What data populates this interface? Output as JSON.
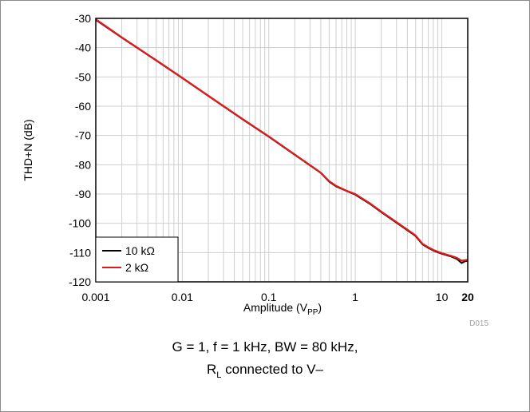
{
  "chart_data": {
    "type": "line",
    "xlabel": {
      "text": "Amplitude (V",
      "sub": "PP",
      "suffix": ")"
    },
    "ylabel": "THD+N (dB)",
    "x_scale": "log",
    "xlim": [
      0.001,
      20
    ],
    "ylim": [
      -120,
      -30
    ],
    "x_ticks": [
      {
        "value": 0.001,
        "label": "0.001",
        "bold": false
      },
      {
        "value": 0.01,
        "label": "0.01",
        "bold": false
      },
      {
        "value": 0.1,
        "label": "0.1",
        "bold": false
      },
      {
        "value": 1,
        "label": "1",
        "bold": false
      },
      {
        "value": 10,
        "label": "10",
        "bold": false
      },
      {
        "value": 20,
        "label": "20",
        "bold": true
      }
    ],
    "y_ticks": [
      {
        "value": -30,
        "label": "-30"
      },
      {
        "value": -40,
        "label": "-40"
      },
      {
        "value": -50,
        "label": "-50"
      },
      {
        "value": -60,
        "label": "-60"
      },
      {
        "value": -70,
        "label": "-70"
      },
      {
        "value": -80,
        "label": "-80"
      },
      {
        "value": -90,
        "label": "-90"
      },
      {
        "value": -100,
        "label": "-100"
      },
      {
        "value": -110,
        "label": "-110"
      },
      {
        "value": -120,
        "label": "-120"
      }
    ],
    "grid": true,
    "legend_position": "bottom-left",
    "series": [
      {
        "name": "10 kΩ",
        "color": "#000000",
        "points": [
          [
            0.001,
            -30.5
          ],
          [
            0.002,
            -36.6
          ],
          [
            0.005,
            -44.4
          ],
          [
            0.01,
            -50.4
          ],
          [
            0.02,
            -56.5
          ],
          [
            0.05,
            -64.5
          ],
          [
            0.1,
            -70.4
          ],
          [
            0.2,
            -76.6
          ],
          [
            0.4,
            -82.8
          ],
          [
            0.5,
            -85.8
          ],
          [
            0.6,
            -87.4
          ],
          [
            0.8,
            -89.0
          ],
          [
            1.0,
            -90.2
          ],
          [
            1.5,
            -93.5
          ],
          [
            2.0,
            -96.2
          ],
          [
            3.0,
            -99.8
          ],
          [
            4.5,
            -103.4
          ],
          [
            5.0,
            -104.4
          ],
          [
            6.0,
            -107.2
          ],
          [
            7.0,
            -108.4
          ],
          [
            8.0,
            -109.3
          ],
          [
            10.0,
            -110.4
          ],
          [
            13.0,
            -111.4
          ],
          [
            15.0,
            -112.2
          ],
          [
            17.0,
            -113.6
          ],
          [
            18.5,
            -113.0
          ],
          [
            20.0,
            -112.8
          ]
        ]
      },
      {
        "name": "2 kΩ",
        "color": "#e31a1c",
        "points": [
          [
            0.001,
            -30.3
          ],
          [
            0.002,
            -36.5
          ],
          [
            0.005,
            -44.3
          ],
          [
            0.01,
            -50.3
          ],
          [
            0.02,
            -56.4
          ],
          [
            0.05,
            -64.4
          ],
          [
            0.1,
            -70.3
          ],
          [
            0.2,
            -76.5
          ],
          [
            0.4,
            -82.7
          ],
          [
            0.5,
            -85.6
          ],
          [
            0.6,
            -87.2
          ],
          [
            0.8,
            -88.9
          ],
          [
            1.0,
            -90.0
          ],
          [
            1.5,
            -93.3
          ],
          [
            2.0,
            -96.0
          ],
          [
            3.0,
            -99.6
          ],
          [
            4.5,
            -103.2
          ],
          [
            5.0,
            -104.2
          ],
          [
            6.0,
            -107.0
          ],
          [
            7.0,
            -108.2
          ],
          [
            8.0,
            -109.1
          ],
          [
            10.0,
            -110.2
          ],
          [
            13.0,
            -111.2
          ],
          [
            15.0,
            -111.8
          ],
          [
            17.0,
            -112.8
          ],
          [
            18.5,
            -112.6
          ],
          [
            20.0,
            -112.5
          ]
        ]
      }
    ]
  },
  "figure_id": "D015",
  "caption": {
    "line1": "G = 1, f = 1 kHz, BW = 80 kHz,",
    "line2_main": "R",
    "line2_sub": "L",
    "line2_rest": " connected to V–"
  }
}
